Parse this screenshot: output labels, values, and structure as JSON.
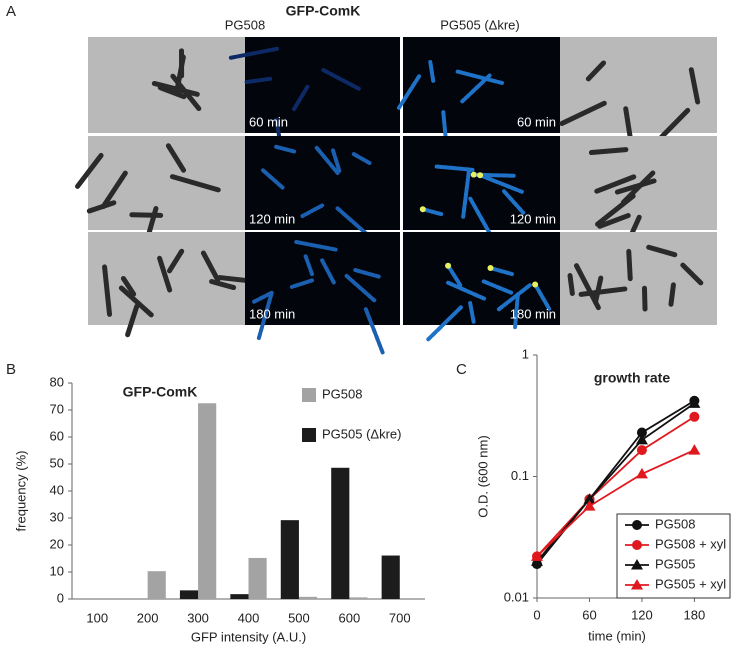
{
  "panel_a": {
    "label": "A",
    "title": "GFP-ComK",
    "strain_left": "PG508",
    "strain_right": "PG505 (Δkre)",
    "times": [
      "60 min",
      "120 min",
      "180 min"
    ]
  },
  "chart_data": [
    {
      "type": "bar",
      "panel_label": "B",
      "title": "GFP-ComK",
      "x_label": "GFP intensity (A.U.)",
      "y_label": "frequency (%)",
      "categories": [
        "100",
        "200",
        "300",
        "400",
        "500",
        "600",
        "700"
      ],
      "series": [
        {
          "name": "PG508",
          "color": "#a3a3a3",
          "values": [
            0,
            10.3,
            72.5,
            15.2,
            0.8,
            0.6,
            0
          ]
        },
        {
          "name": "PG505 (Δkre)",
          "color": "#1c1c1c",
          "values": [
            0,
            0,
            3.2,
            1.8,
            29.2,
            48.6,
            16.1
          ]
        }
      ],
      "ylim": [
        0,
        80
      ],
      "yticks": [
        0,
        10,
        20,
        30,
        40,
        50,
        60,
        70,
        80
      ],
      "legend": "upper right"
    },
    {
      "type": "line",
      "panel_label": "C",
      "title": "growth rate",
      "x_label": "time (min)",
      "y_label": "O.D. (600 nm)",
      "x": [
        0,
        60,
        120,
        180
      ],
      "xlim": [
        0,
        215
      ],
      "xticks": [
        0,
        60,
        120,
        180
      ],
      "ylim": [
        0.01,
        1
      ],
      "yticks": [
        0.01,
        0.1,
        1
      ],
      "log_y": true,
      "series": [
        {
          "name": "PG508",
          "color": "#111111",
          "marker": "circle",
          "values": [
            0.019,
            0.065,
            0.23,
            0.42
          ]
        },
        {
          "name": "PG508 + xyl",
          "color": "#e0191f",
          "marker": "circle",
          "values": [
            0.022,
            0.065,
            0.165,
            0.31
          ]
        },
        {
          "name": "PG505",
          "color": "#111111",
          "marker": "triangle",
          "values": [
            0.02,
            0.065,
            0.2,
            0.4
          ]
        },
        {
          "name": "PG505 + xyl",
          "color": "#e0191f",
          "marker": "triangle",
          "values": [
            0.022,
            0.057,
            0.105,
            0.165
          ]
        }
      ],
      "legend": "lower right"
    }
  ]
}
